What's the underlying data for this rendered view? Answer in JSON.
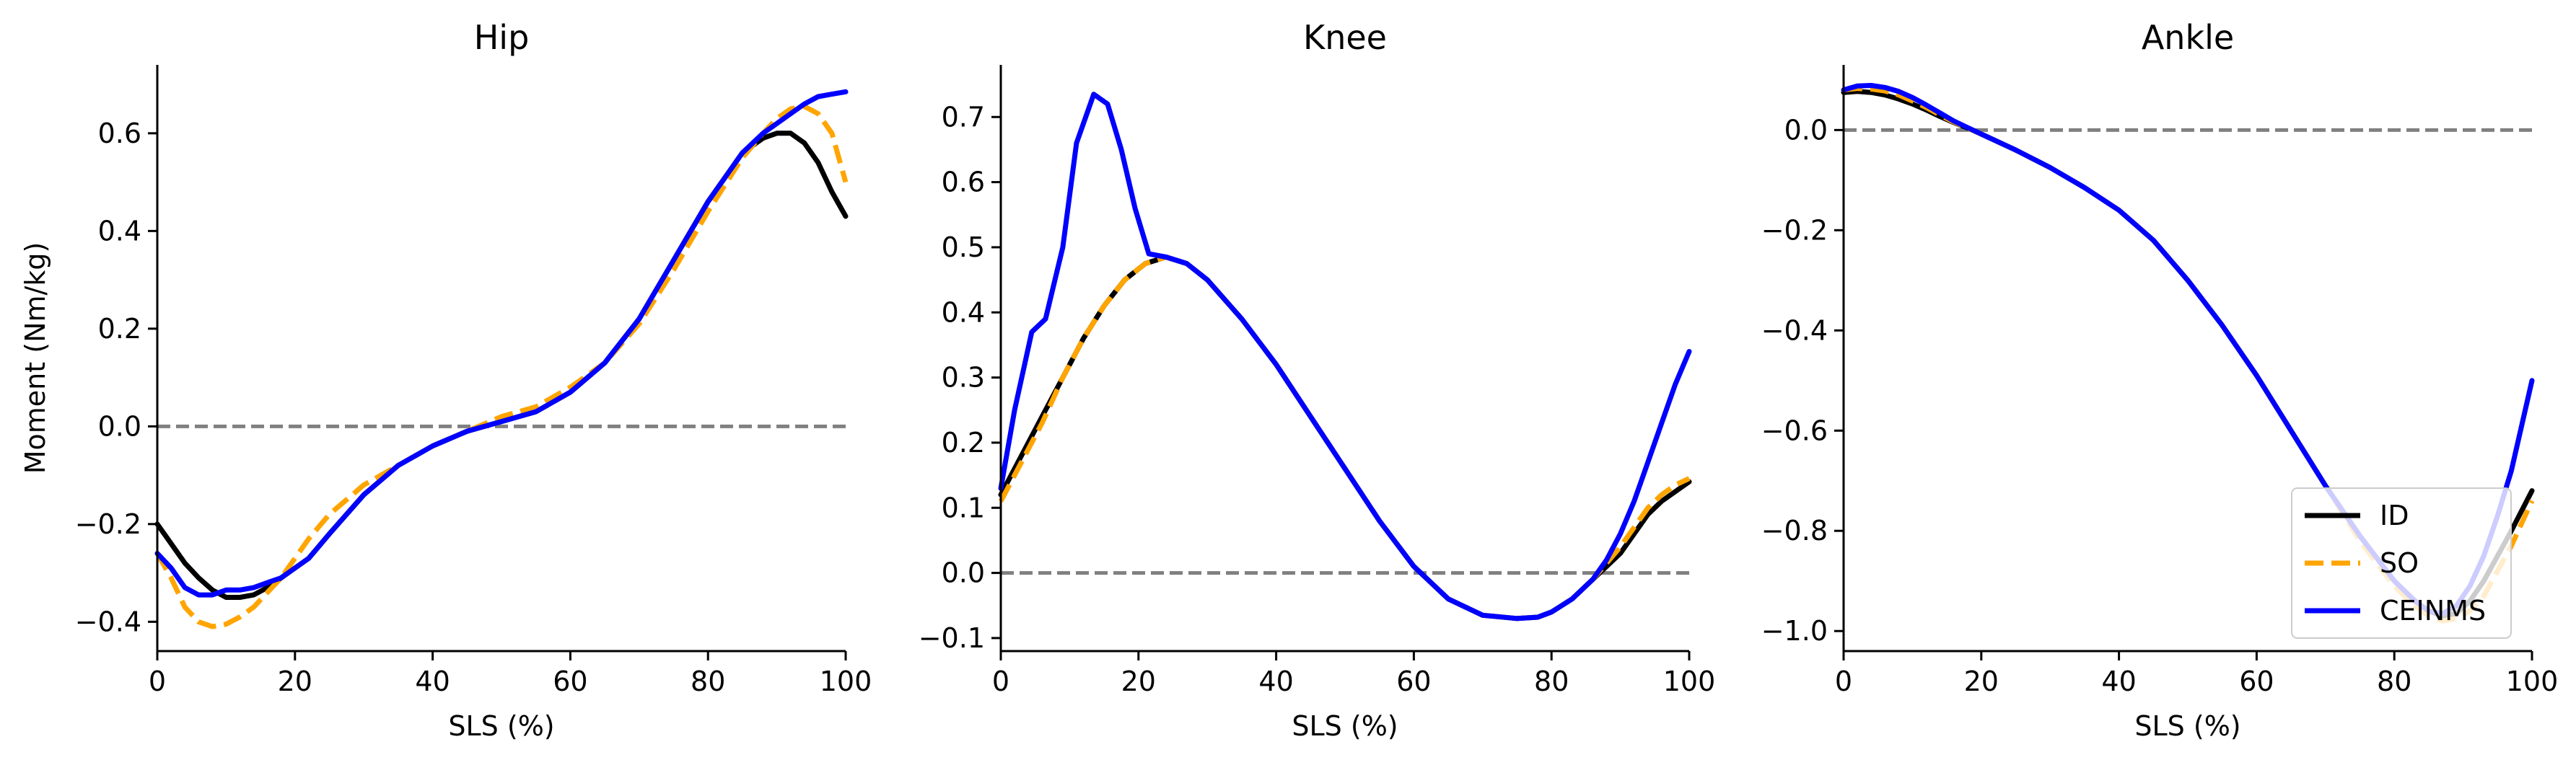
{
  "chart_data": [
    {
      "type": "line",
      "title": "Hip",
      "xlabel": "SLS (%)",
      "ylabel": "Moment (Nm/kg)",
      "xlim": [
        0,
        100
      ],
      "ylim": [
        -0.46,
        0.74
      ],
      "xticks": [
        0,
        20,
        40,
        60,
        80,
        100
      ],
      "yticks": [
        -0.4,
        -0.2,
        0.0,
        0.2,
        0.4,
        0.6
      ],
      "reference_line": {
        "y": 0,
        "style": "dashed",
        "color": "#808080"
      },
      "series": [
        {
          "name": "ID",
          "color": "#000000",
          "dash": "solid",
          "x": [
            0,
            2,
            4,
            6,
            8,
            10,
            12,
            14,
            16,
            18,
            20,
            22,
            25,
            30,
            35,
            40,
            45,
            50,
            55,
            60,
            65,
            70,
            75,
            80,
            85,
            88,
            90,
            92,
            94,
            96,
            98,
            100
          ],
          "y": [
            -0.2,
            -0.24,
            -0.28,
            -0.31,
            -0.335,
            -0.35,
            -0.35,
            -0.345,
            -0.33,
            -0.31,
            -0.29,
            -0.27,
            -0.22,
            -0.14,
            -0.08,
            -0.04,
            -0.01,
            0.01,
            0.03,
            0.07,
            0.13,
            0.22,
            0.34,
            0.46,
            0.56,
            0.59,
            0.6,
            0.6,
            0.58,
            0.54,
            0.48,
            0.43
          ]
        },
        {
          "name": "SO",
          "color": "#FFA500",
          "dash": "dashed",
          "x": [
            0,
            2,
            4,
            6,
            8,
            10,
            12,
            14,
            16,
            18,
            20,
            22,
            25,
            30,
            35,
            40,
            45,
            50,
            55,
            60,
            65,
            70,
            75,
            80,
            85,
            88,
            90,
            92,
            94,
            96,
            98,
            100
          ],
          "y": [
            -0.26,
            -0.31,
            -0.37,
            -0.4,
            -0.41,
            -0.405,
            -0.39,
            -0.37,
            -0.34,
            -0.31,
            -0.27,
            -0.23,
            -0.18,
            -0.12,
            -0.08,
            -0.04,
            -0.01,
            0.02,
            0.04,
            0.08,
            0.13,
            0.21,
            0.32,
            0.44,
            0.55,
            0.6,
            0.63,
            0.65,
            0.655,
            0.64,
            0.6,
            0.5
          ]
        },
        {
          "name": "CEINMS",
          "color": "#0000FF",
          "dash": "solid",
          "x": [
            0,
            2,
            4,
            6,
            8,
            10,
            12,
            14,
            16,
            18,
            20,
            22,
            25,
            30,
            35,
            40,
            45,
            50,
            55,
            60,
            65,
            70,
            75,
            80,
            85,
            88,
            90,
            92,
            94,
            96,
            98,
            100
          ],
          "y": [
            -0.26,
            -0.29,
            -0.33,
            -0.345,
            -0.345,
            -0.335,
            -0.335,
            -0.33,
            -0.32,
            -0.31,
            -0.29,
            -0.27,
            -0.22,
            -0.14,
            -0.08,
            -0.04,
            -0.01,
            0.01,
            0.03,
            0.07,
            0.13,
            0.22,
            0.34,
            0.46,
            0.56,
            0.6,
            0.62,
            0.64,
            0.66,
            0.675,
            0.68,
            0.685
          ]
        }
      ]
    },
    {
      "type": "line",
      "title": "Knee",
      "xlabel": "SLS (%)",
      "ylabel": "",
      "xlim": [
        0,
        100
      ],
      "ylim": [
        -0.12,
        0.78
      ],
      "xticks": [
        0,
        20,
        40,
        60,
        80,
        100
      ],
      "yticks": [
        -0.1,
        0.0,
        0.1,
        0.2,
        0.3,
        0.4,
        0.5,
        0.6,
        0.7
      ],
      "reference_line": {
        "y": 0,
        "style": "dashed",
        "color": "#808080"
      },
      "series": [
        {
          "name": "ID",
          "color": "#000000",
          "dash": "solid",
          "x": [
            0,
            3,
            6,
            9,
            12,
            15,
            18,
            21,
            24,
            27,
            30,
            35,
            40,
            45,
            50,
            55,
            60,
            65,
            70,
            75,
            78,
            80,
            83,
            86,
            88,
            90,
            92,
            94,
            96,
            98,
            100
          ],
          "y": [
            0.12,
            0.18,
            0.24,
            0.3,
            0.36,
            0.41,
            0.45,
            0.475,
            0.485,
            0.475,
            0.45,
            0.39,
            0.32,
            0.24,
            0.16,
            0.08,
            0.01,
            -0.04,
            -0.065,
            -0.07,
            -0.068,
            -0.06,
            -0.04,
            -0.01,
            0.01,
            0.03,
            0.06,
            0.09,
            0.11,
            0.125,
            0.14
          ]
        },
        {
          "name": "SO",
          "color": "#FFA500",
          "dash": "dashed",
          "x": [
            0,
            3,
            6,
            9,
            12,
            15,
            18,
            21,
            24,
            27,
            30,
            35,
            40,
            45,
            50,
            55,
            60,
            65,
            70,
            75,
            78,
            80,
            83,
            86,
            88,
            90,
            92,
            94,
            96,
            98,
            100
          ],
          "y": [
            0.11,
            0.17,
            0.23,
            0.3,
            0.36,
            0.41,
            0.45,
            0.475,
            0.485,
            0.475,
            0.45,
            0.39,
            0.32,
            0.24,
            0.16,
            0.08,
            0.01,
            -0.04,
            -0.065,
            -0.07,
            -0.068,
            -0.06,
            -0.04,
            -0.01,
            0.015,
            0.04,
            0.07,
            0.1,
            0.12,
            0.135,
            0.145
          ]
        },
        {
          "name": "CEINMS",
          "color": "#0000FF",
          "dash": "solid",
          "x": [
            0,
            2,
            4.5,
            6.5,
            9,
            11,
            13.5,
            15.5,
            17.5,
            19.5,
            21.5,
            24,
            27,
            30,
            35,
            40,
            45,
            50,
            55,
            60,
            65,
            70,
            75,
            78,
            80,
            83,
            86,
            88,
            90,
            92,
            94,
            96,
            98,
            100
          ],
          "y": [
            0.13,
            0.25,
            0.37,
            0.39,
            0.5,
            0.66,
            0.735,
            0.72,
            0.65,
            0.56,
            0.49,
            0.485,
            0.475,
            0.45,
            0.39,
            0.32,
            0.24,
            0.16,
            0.08,
            0.01,
            -0.04,
            -0.065,
            -0.07,
            -0.068,
            -0.06,
            -0.04,
            -0.01,
            0.02,
            0.06,
            0.11,
            0.17,
            0.23,
            0.29,
            0.34
          ]
        }
      ]
    },
    {
      "type": "line",
      "title": "Ankle",
      "xlabel": "SLS (%)",
      "ylabel": "",
      "xlim": [
        0,
        100
      ],
      "ylim": [
        -1.04,
        0.13
      ],
      "xticks": [
        0,
        20,
        40,
        60,
        80,
        100
      ],
      "yticks": [
        -1.0,
        -0.8,
        -0.6,
        -0.4,
        -0.2,
        0.0
      ],
      "reference_line": {
        "y": 0,
        "style": "dashed",
        "color": "#808080"
      },
      "series": [
        {
          "name": "ID",
          "color": "#000000",
          "dash": "solid",
          "x": [
            0,
            2,
            4,
            6,
            8,
            10,
            12,
            14,
            16,
            18,
            20,
            25,
            30,
            35,
            40,
            45,
            50,
            55,
            60,
            65,
            70,
            75,
            80,
            83,
            85,
            87,
            89,
            91,
            93,
            95,
            97,
            100
          ],
          "y": [
            0.075,
            0.077,
            0.075,
            0.07,
            0.062,
            0.052,
            0.04,
            0.027,
            0.015,
            0.004,
            -0.008,
            -0.04,
            -0.075,
            -0.115,
            -0.16,
            -0.22,
            -0.3,
            -0.39,
            -0.49,
            -0.6,
            -0.71,
            -0.81,
            -0.9,
            -0.94,
            -0.96,
            -0.97,
            -0.965,
            -0.94,
            -0.9,
            -0.85,
            -0.8,
            -0.72
          ]
        },
        {
          "name": "SO",
          "color": "#FFA500",
          "dash": "dashed",
          "x": [
            0,
            2,
            4,
            6,
            8,
            10,
            12,
            14,
            16,
            18,
            20,
            25,
            30,
            35,
            40,
            45,
            50,
            55,
            60,
            65,
            70,
            75,
            80,
            83,
            85,
            87,
            89,
            91,
            93,
            95,
            97,
            100
          ],
          "y": [
            0.08,
            0.083,
            0.082,
            0.078,
            0.07,
            0.058,
            0.045,
            0.03,
            0.016,
            0.004,
            -0.008,
            -0.04,
            -0.075,
            -0.115,
            -0.16,
            -0.22,
            -0.3,
            -0.39,
            -0.49,
            -0.6,
            -0.71,
            -0.82,
            -0.91,
            -0.95,
            -0.97,
            -0.98,
            -0.975,
            -0.96,
            -0.93,
            -0.88,
            -0.83,
            -0.74
          ]
        },
        {
          "name": "CEINMS",
          "color": "#0000FF",
          "dash": "solid",
          "x": [
            0,
            2,
            4,
            6,
            8,
            10,
            12,
            14,
            16,
            18,
            20,
            25,
            30,
            35,
            40,
            45,
            50,
            55,
            60,
            65,
            70,
            75,
            80,
            83,
            85,
            87,
            89,
            91,
            93,
            95,
            97,
            100
          ],
          "y": [
            0.08,
            0.088,
            0.089,
            0.085,
            0.077,
            0.065,
            0.05,
            0.034,
            0.018,
            0.005,
            -0.008,
            -0.04,
            -0.075,
            -0.115,
            -0.16,
            -0.22,
            -0.3,
            -0.39,
            -0.49,
            -0.6,
            -0.71,
            -0.81,
            -0.9,
            -0.94,
            -0.96,
            -0.965,
            -0.95,
            -0.91,
            -0.85,
            -0.77,
            -0.68,
            -0.5
          ]
        }
      ]
    }
  ],
  "legend": {
    "placement": "lower-right of Ankle panel",
    "entries": [
      {
        "label": "ID",
        "color": "#000000",
        "dash": "solid"
      },
      {
        "label": "SO",
        "color": "#FFA500",
        "dash": "dashed"
      },
      {
        "label": "CEINMS",
        "color": "#0000FF",
        "dash": "solid"
      }
    ]
  }
}
